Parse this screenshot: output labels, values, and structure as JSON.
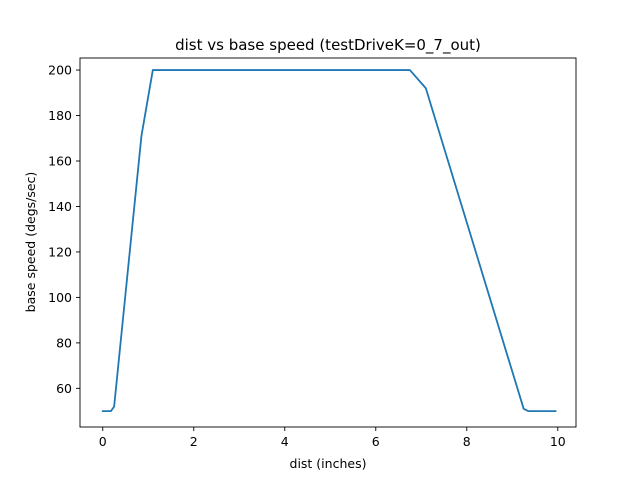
{
  "chart_data": {
    "type": "line",
    "title": "dist vs base speed (testDriveK=0_7_out)",
    "xlabel": "dist (inches)",
    "ylabel": "base speed (degs/sec)",
    "xlim": [
      -0.5,
      10.4
    ],
    "ylim": [
      43,
      205.3
    ],
    "xticks": [
      0,
      2,
      4,
      6,
      8,
      10
    ],
    "yticks": [
      60,
      80,
      100,
      120,
      140,
      160,
      180,
      200
    ],
    "grid": false,
    "series": [
      {
        "color": "#1f77b4",
        "x": [
          0,
          0.18,
          0.25,
          0.85,
          1.1,
          6.75,
          7.1,
          9.25,
          9.35,
          9.95
        ],
        "y": [
          50,
          50,
          52,
          171,
          200,
          200,
          192,
          51,
          50,
          50
        ]
      }
    ]
  }
}
